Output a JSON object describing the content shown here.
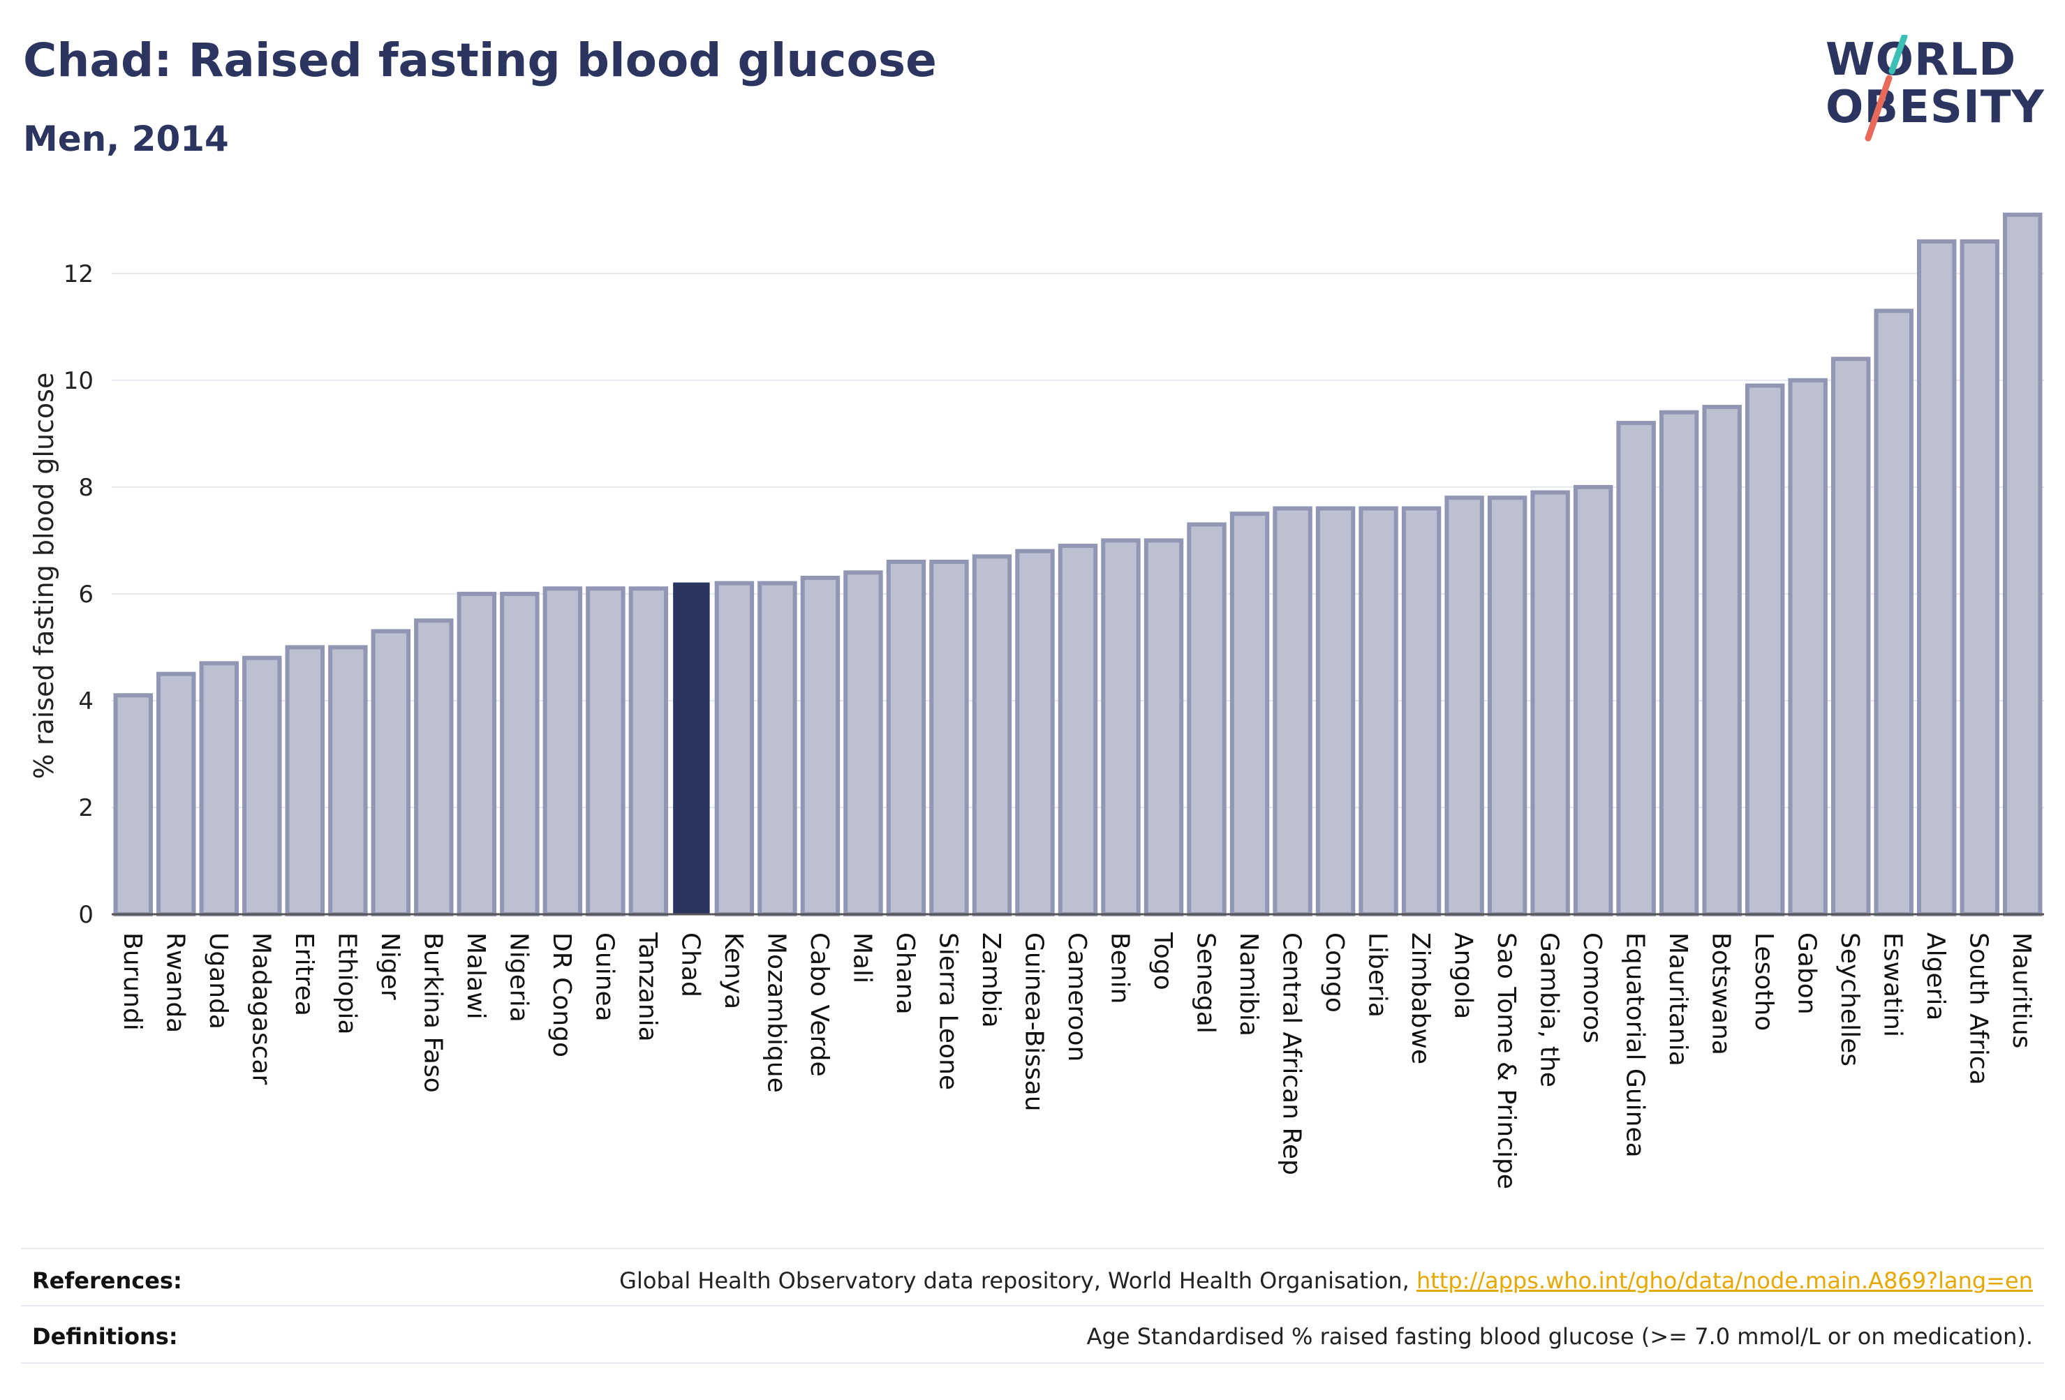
{
  "header": {
    "title": "Chad: Raised fasting blood glucose",
    "subtitle": "Men, 2014"
  },
  "logo": {
    "line1": "WORLD",
    "line2": "OBESITY",
    "slash_colors": [
      "#3cbfb4",
      "#e86a5a"
    ]
  },
  "colors": {
    "bar_fill": "#bcc0d1",
    "bar_stroke": "#9096b4",
    "highlight": "#2b3560",
    "grid": "#e6e6ee",
    "axis": "#555555"
  },
  "chart_data": {
    "type": "bar",
    "title": "",
    "xlabel": "",
    "ylabel": "% raised fasting blood glucose",
    "ylim": [
      0,
      13.2
    ],
    "yticks": [
      0,
      2,
      4,
      6,
      8,
      10,
      12
    ],
    "highlight": "Chad",
    "categories": [
      "Burundi",
      "Rwanda",
      "Uganda",
      "Madagascar",
      "Eritrea",
      "Ethiopia",
      "Niger",
      "Burkina Faso",
      "Malawi",
      "Nigeria",
      "DR Congo",
      "Guinea",
      "Tanzania",
      "Chad",
      "Kenya",
      "Mozambique",
      "Cabo Verde",
      "Mali",
      "Ghana",
      "Sierra Leone",
      "Zambia",
      "Guinea-Bissau",
      "Cameroon",
      "Benin",
      "Togo",
      "Senegal",
      "Namibia",
      "Central African Rep",
      "Congo",
      "Liberia",
      "Zimbabwe",
      "Angola",
      "Sao Tome & Principe",
      "Gambia, the",
      "Comoros",
      "Equatorial Guinea",
      "Mauritania",
      "Botswana",
      "Lesotho",
      "Gabon",
      "Seychelles",
      "Eswatini",
      "Algeria",
      "South Africa",
      "Mauritius"
    ],
    "values": [
      4.1,
      4.5,
      4.7,
      4.8,
      5.0,
      5.0,
      5.3,
      5.5,
      6.0,
      6.0,
      6.1,
      6.1,
      6.1,
      6.2,
      6.2,
      6.2,
      6.3,
      6.4,
      6.6,
      6.6,
      6.7,
      6.8,
      6.9,
      7.0,
      7.0,
      7.3,
      7.5,
      7.6,
      7.6,
      7.6,
      7.6,
      7.8,
      7.8,
      7.9,
      8.0,
      9.2,
      9.4,
      9.5,
      9.9,
      10.0,
      10.4,
      11.3,
      12.6,
      12.6,
      13.1
    ]
  },
  "footer": {
    "references_label": "References:",
    "references_text": "Global Health Observatory data repository, World Health Organisation, ",
    "references_link": "http://apps.who.int/gho/data/node.main.A869?lang=en",
    "definitions_label": "Definitions:",
    "definitions_text": "Age Standardised % raised fasting blood glucose (>= 7.0 mmol/L or on medication)."
  }
}
